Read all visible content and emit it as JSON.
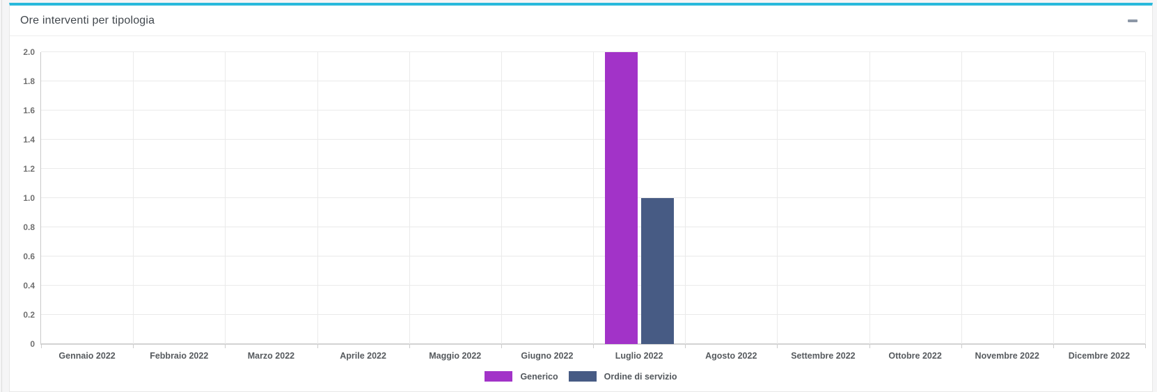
{
  "panel": {
    "title": "Ore interventi per tipologia",
    "accent_color": "#29b9dc",
    "collapse_icon": "minus"
  },
  "chart_data": {
    "type": "bar",
    "title": "Ore interventi per tipologia",
    "categories": [
      "Gennaio 2022",
      "Febbraio 2022",
      "Marzo 2022",
      "Aprile 2022",
      "Maggio 2022",
      "Giugno 2022",
      "Luglio 2022",
      "Agosto 2022",
      "Settembre 2022",
      "Ottobre 2022",
      "Novembre 2022",
      "Dicembre 2022"
    ],
    "series": [
      {
        "name": "Generico",
        "color": "#a233c8",
        "values": [
          0,
          0,
          0,
          0,
          0,
          0,
          2,
          0,
          0,
          0,
          0,
          0
        ]
      },
      {
        "name": "Ordine di servizio",
        "color": "#475b84",
        "values": [
          0,
          0,
          0,
          0,
          0,
          0,
          1,
          0,
          0,
          0,
          0,
          0
        ]
      }
    ],
    "xlabel": "",
    "ylabel": "",
    "ylim": [
      0,
      2
    ],
    "ytick_step": 0.2,
    "ytick_labels": [
      "0",
      "0.2",
      "0.4",
      "0.6",
      "0.8",
      "1.0",
      "1.2",
      "1.4",
      "1.6",
      "1.8",
      "2.0"
    ],
    "grid": true,
    "legend_position": "bottom"
  }
}
